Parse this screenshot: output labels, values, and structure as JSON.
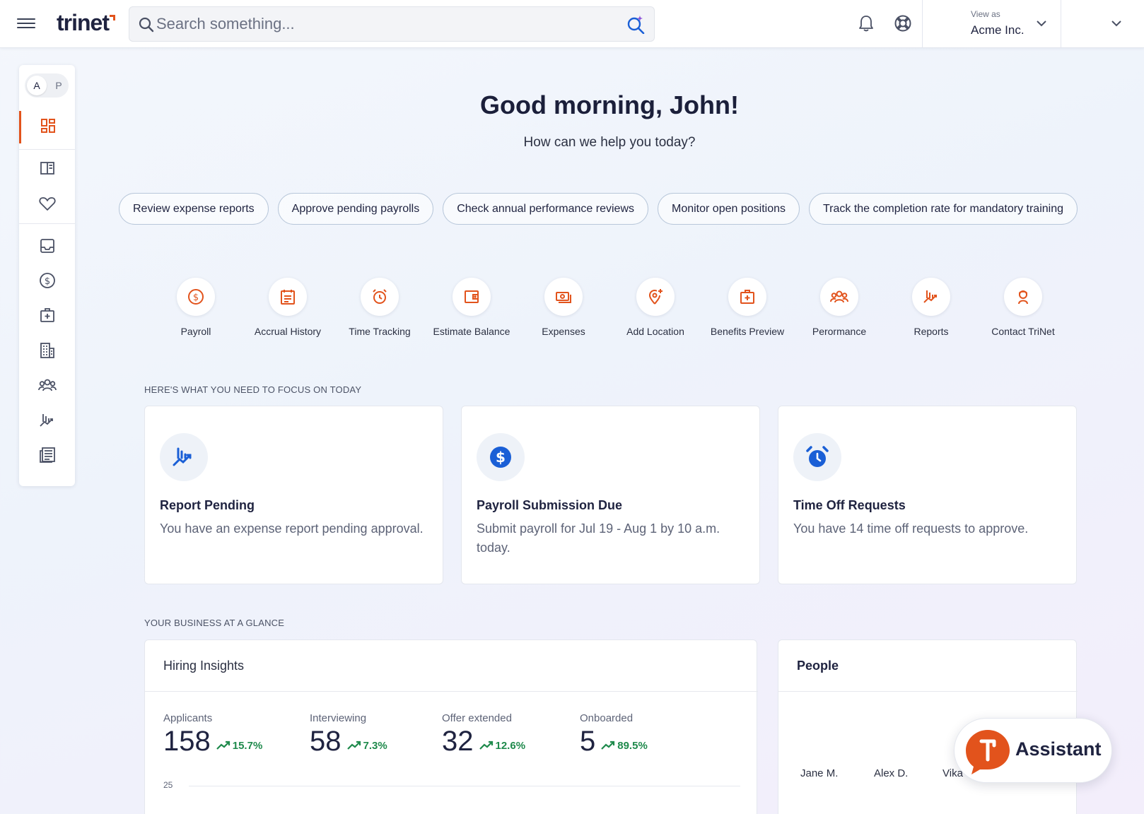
{
  "header": {
    "logo_text": "trinet",
    "search_placeholder": "Search something...",
    "view_as_label": "View as",
    "company": "Acme Inc."
  },
  "icons": {
    "menu": "hamburger-icon",
    "search": "search-icon",
    "ai_search": "ai-search-icon",
    "notifications": "bell-icon",
    "help": "help-lifebuoy-icon"
  },
  "rail": {
    "toggle": {
      "option_a": "A",
      "option_p": "P"
    },
    "items": [
      "dashboard",
      "directory",
      "benefits",
      "inbox",
      "payroll",
      "health",
      "company",
      "people",
      "reports",
      "documents"
    ]
  },
  "greeting": {
    "title": "Good morning, John!",
    "subtitle": "How can we help you today?"
  },
  "suggestions": [
    "Review expense reports",
    "Approve pending payrolls",
    "Check annual performance reviews",
    "Monitor open positions",
    "Track the completion rate for mandatory training"
  ],
  "quick_actions": [
    {
      "label": "Payroll",
      "icon": "dollar-circle-icon"
    },
    {
      "label": "Accrual History",
      "icon": "ledger-icon"
    },
    {
      "label": "Time Tracking",
      "icon": "alarm-clock-icon"
    },
    {
      "label": "Estimate Balance",
      "icon": "wallet-icon"
    },
    {
      "label": "Expenses",
      "icon": "cash-icon"
    },
    {
      "label": "Add Location",
      "icon": "add-location-icon"
    },
    {
      "label": "Benefits Preview",
      "icon": "medical-kit-icon"
    },
    {
      "label": "Perormance",
      "icon": "team-icon"
    },
    {
      "label": "Reports",
      "icon": "chart-icon"
    },
    {
      "label": "Contact TriNet",
      "icon": "contact-person-icon"
    }
  ],
  "focus": {
    "section_title": "HERE'S WHAT YOU NEED TO FOCUS ON TODAY",
    "cards": [
      {
        "title": "Report Pending",
        "desc": "You have an expense report pending approval.",
        "icon": "report-chart-icon"
      },
      {
        "title": "Payroll Submission Due",
        "desc": "Submit payroll for Jul 19 - Aug 1 by 10 a.m. today.",
        "icon": "dollar-icon"
      },
      {
        "title": "Time Off Requests",
        "desc": "You have 14 time off requests to approve.",
        "icon": "alarm-clock-icon"
      }
    ]
  },
  "glance": {
    "section_title": "YOUR BUSINESS AT A GLANCE",
    "hiring": {
      "title": "Hiring Insights",
      "metrics": [
        {
          "label": "Applicants",
          "value": "158",
          "change": "15.7%"
        },
        {
          "label": "Interviewing",
          "value": "58",
          "change": "7.3%"
        },
        {
          "label": "Offer extended",
          "value": "32",
          "change": "12.6%"
        },
        {
          "label": "Onboarded",
          "value": "5",
          "change": "89.5%"
        }
      ],
      "y_tick": "25"
    },
    "people": {
      "title": "People",
      "names": [
        "Jane M.",
        "Alex D.",
        "Vika"
      ]
    }
  },
  "assistant": {
    "label": "Assistant"
  },
  "colors": {
    "accent": "#e2531c",
    "blue": "#1a5fd6",
    "positive": "#1f8a4c"
  }
}
